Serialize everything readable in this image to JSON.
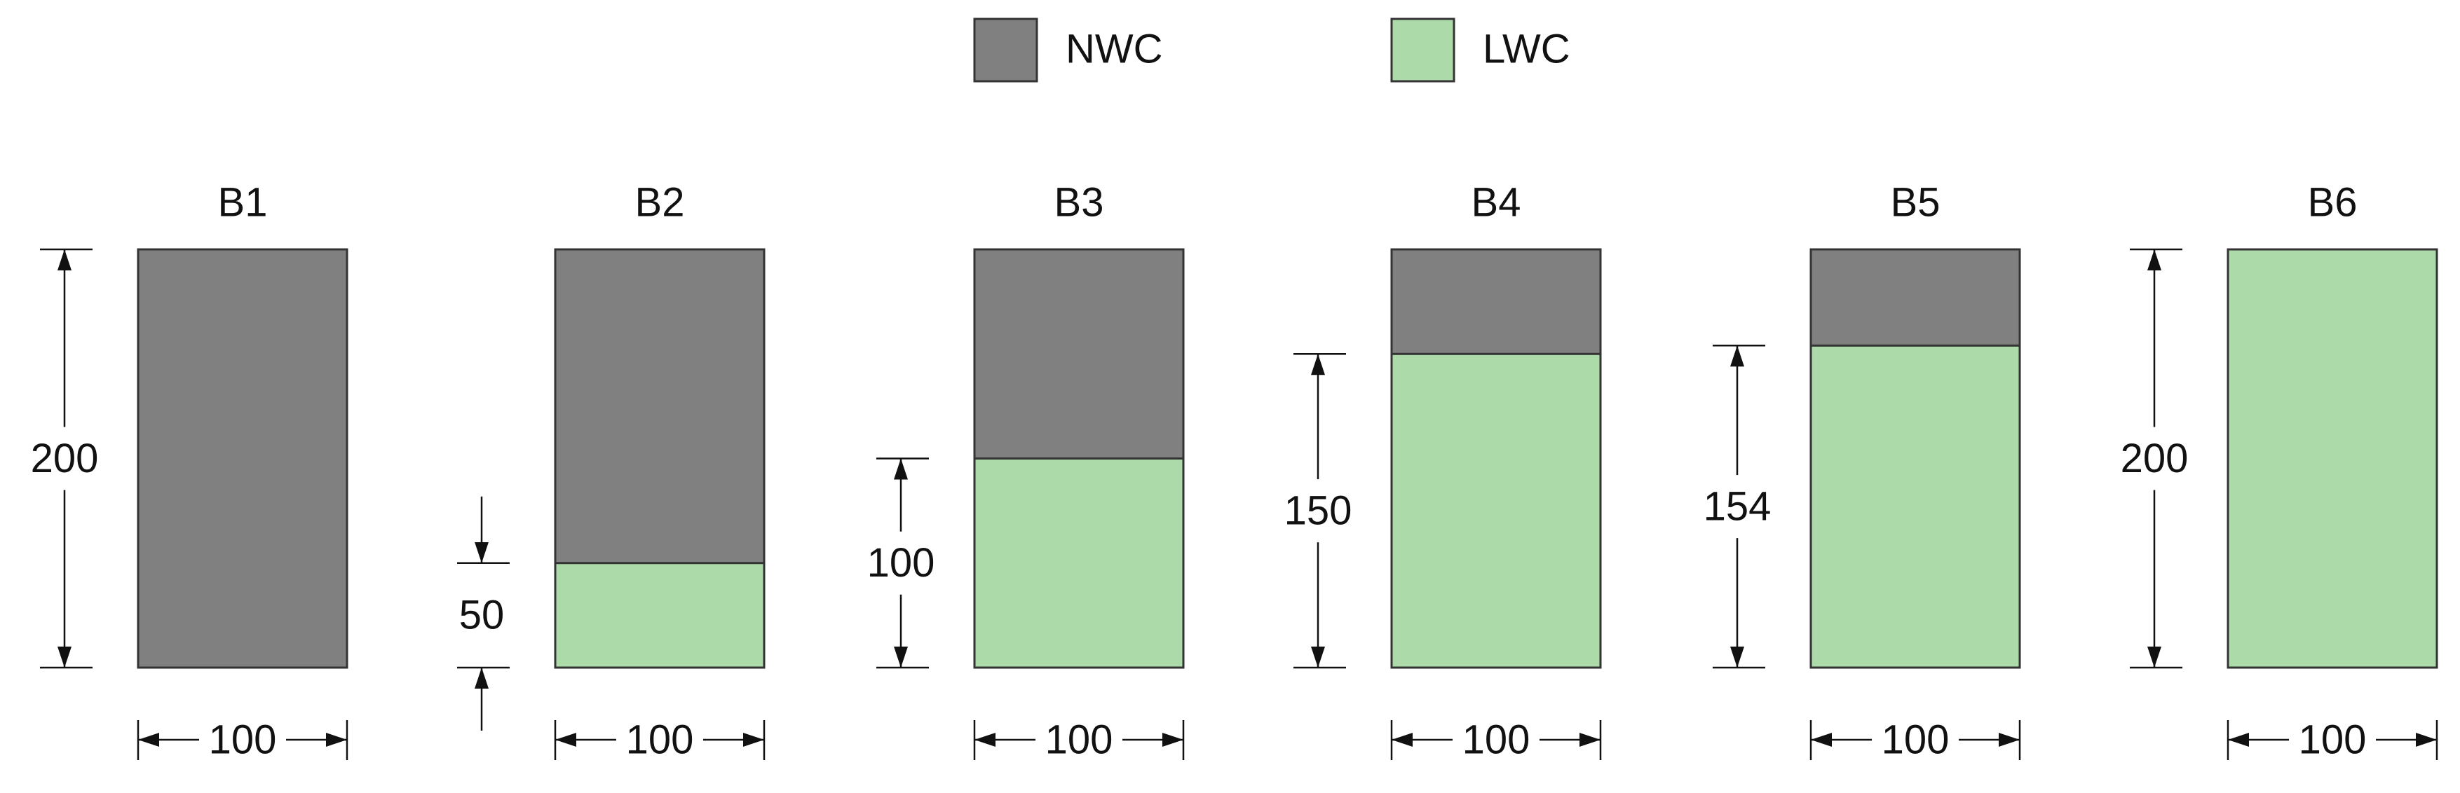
{
  "legend": [
    {
      "label": "NWC",
      "color": "#808080"
    },
    {
      "label": "LWC",
      "color": "#acdaa8"
    }
  ],
  "sections": [
    {
      "label": "B1",
      "width": 100,
      "depth": 200,
      "depth_fill": "#808080"
    },
    {
      "label": "B2",
      "width": 100,
      "depth": 50,
      "depth_fill": "#acdaa8"
    },
    {
      "label": "B3",
      "width": 100,
      "depth": 100,
      "depth_fill": "#acdaa8"
    },
    {
      "label": "B4",
      "width": 100,
      "depth": 150,
      "depth_fill": "#acdaa8"
    },
    {
      "label": "B5",
      "width": 100,
      "depth": 154,
      "depth_fill": "#acdaa8"
    },
    {
      "label": "B6",
      "width": 100,
      "depth": 200,
      "depth_fill": "#acdaa8"
    }
  ]
}
